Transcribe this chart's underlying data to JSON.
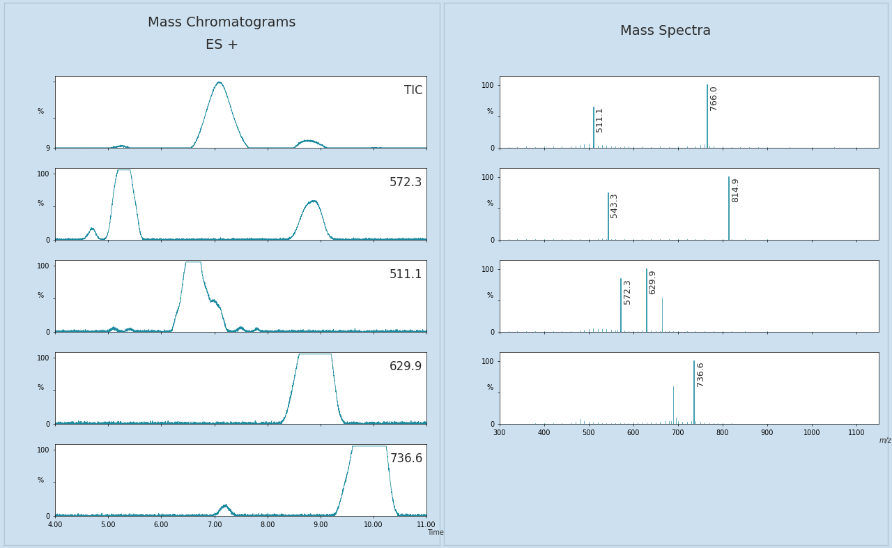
{
  "bg_color": "#cce0ef",
  "plot_bg": "#ffffff",
  "line_color": "#1a8a9e",
  "left_title_line1": "Mass Chromatograms",
  "left_title_line2": "ES +",
  "right_title": "Mass Spectra",
  "chrom_labels": [
    "TIC",
    "572.3",
    "511.1",
    "629.9",
    "736.6"
  ],
  "chrom_xlim": [
    4.0,
    11.0
  ],
  "chrom_xticks": [
    4.0,
    5.0,
    6.0,
    7.0,
    8.0,
    9.0,
    10.0,
    11.0
  ],
  "chrom_xtick_labels": [
    "4.00",
    "5.00",
    "6.00",
    "7.00",
    "8.00",
    "9.00",
    "10.00",
    "11.00"
  ],
  "spectra_xlim": [
    300,
    1150
  ],
  "spectra_xticks": [
    300,
    400,
    500,
    600,
    700,
    800,
    900,
    1000,
    1100
  ],
  "spectra_xtick_labels": [
    "300",
    "400",
    "500",
    "600",
    "700",
    "800",
    "900",
    "1000",
    "1100"
  ],
  "spectra_main_peaks": [
    {
      "mz": [
        511.1,
        766.0
      ],
      "int": [
        65,
        100
      ],
      "labels": [
        "511.1",
        "766.0"
      ]
    },
    {
      "mz": [
        543.3,
        814.9
      ],
      "int": [
        75,
        100
      ],
      "labels": [
        "543.3",
        "814.9"
      ]
    },
    {
      "mz": [
        572.3,
        629.9
      ],
      "int": [
        85,
        100
      ],
      "labels": [
        "572.3",
        "629.9"
      ]
    },
    {
      "mz": [
        736.6
      ],
      "int": [
        100
      ],
      "labels": [
        "736.6"
      ]
    }
  ],
  "font_color": "#2c2c2c",
  "tick_fontsize": 7,
  "label_fontsize": 12,
  "title_fontsize": 14,
  "panel_border_color": "#b0c8d8"
}
